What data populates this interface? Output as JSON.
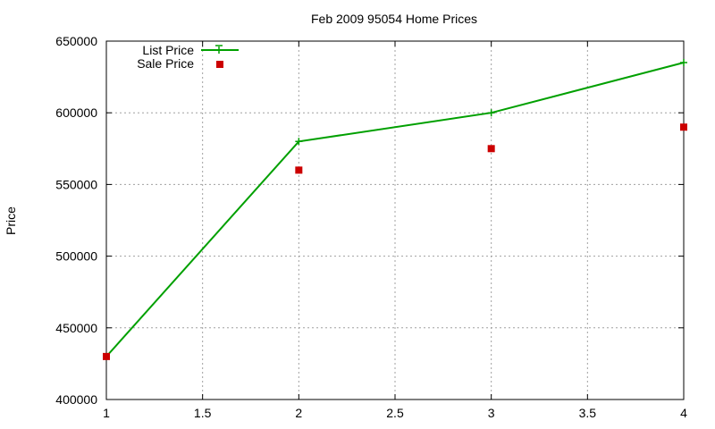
{
  "chart_data": {
    "type": "line",
    "title": "Feb 2009 95054 Home Prices",
    "xlabel": "",
    "ylabel": "Price",
    "xlim": [
      1,
      4
    ],
    "ylim": [
      400000,
      650000
    ],
    "xticks": [
      "1",
      "1.5",
      "2",
      "2.5",
      "3",
      "3.5",
      "4"
    ],
    "yticks": [
      "400000",
      "450000",
      "500000",
      "550000",
      "600000",
      "650000"
    ],
    "grid": true,
    "legend_position": "top-left",
    "series": [
      {
        "name": "List Price",
        "style": "line-with-plus-markers",
        "color": "#00a000",
        "x": [
          1,
          2,
          3,
          4
        ],
        "y": [
          430000,
          580000,
          600000,
          635000
        ]
      },
      {
        "name": "Sale Price",
        "style": "square-markers",
        "color": "#cc0000",
        "x": [
          1,
          2,
          3,
          4
        ],
        "y": [
          430000,
          560000,
          575000,
          590000
        ]
      }
    ]
  }
}
